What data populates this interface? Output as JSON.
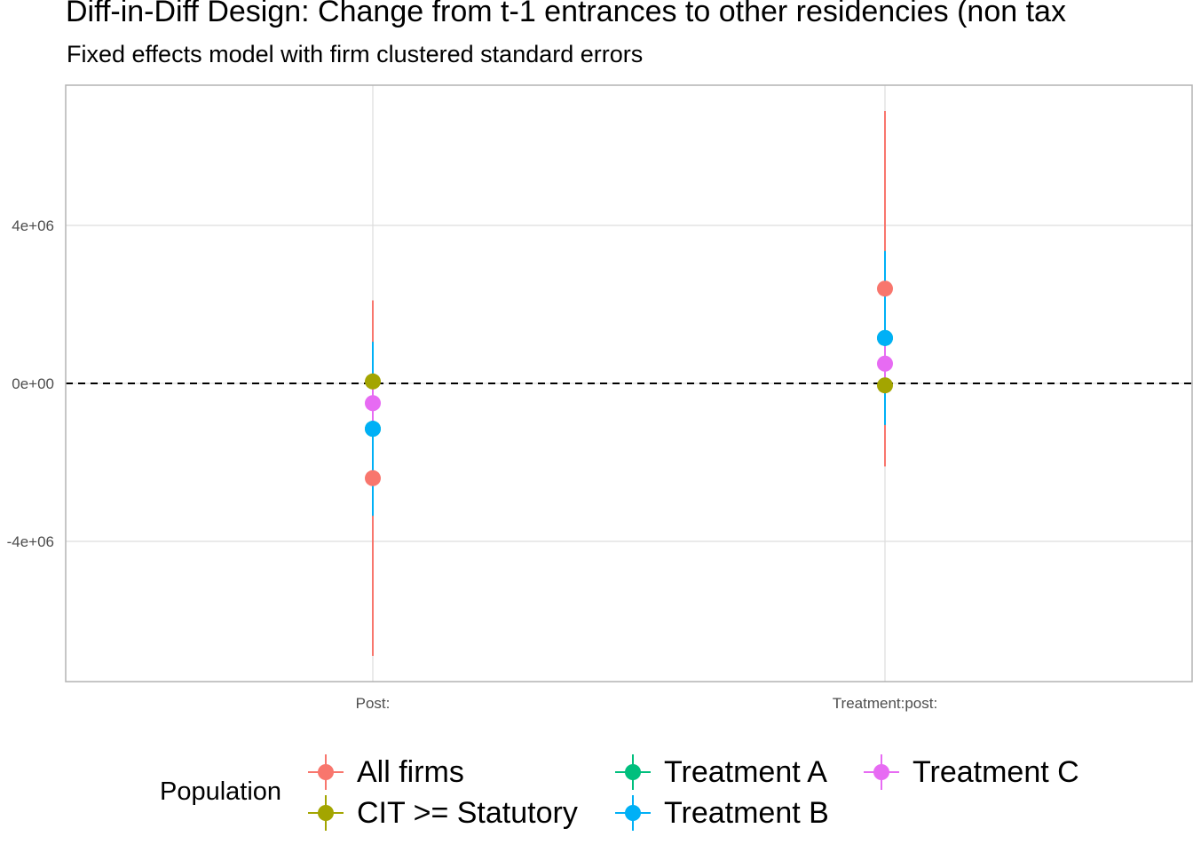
{
  "chart_data": {
    "type": "scatter",
    "title": "Diff-in-Diff Design: Change from t-1 entrances to other residencies (non tax",
    "subtitle": "Fixed effects model with firm clustered standard errors",
    "xlabel": "",
    "ylabel": "",
    "categories": [
      "Post:",
      "Treatment:post:"
    ],
    "y_ticks": [
      -4000000,
      0,
      4000000
    ],
    "y_tick_labels": [
      "-4e+06",
      "0e+00",
      "4e+06"
    ],
    "ylim": [
      -7500000,
      7600000
    ],
    "reference_line": 0,
    "legend_title": "Population",
    "legend_position": "bottom",
    "grid": true,
    "series": [
      {
        "name": "All firms",
        "color": "#F8766D",
        "values": [
          -2400000,
          2400000
        ],
        "lower": [
          -6900000,
          -2100000
        ],
        "upper": [
          2100000,
          6900000
        ]
      },
      {
        "name": "CIT >= Statutory",
        "color": "#A3A500",
        "values": [
          50000,
          -50000
        ],
        "lower": [
          -300000,
          -400000
        ],
        "upper": [
          400000,
          300000
        ]
      },
      {
        "name": "Treatment A",
        "color": "#00BF7D",
        "values": [
          -1150000,
          1150000
        ],
        "lower": [
          -3350000,
          -1050000
        ],
        "upper": [
          1050000,
          3350000
        ]
      },
      {
        "name": "Treatment B",
        "color": "#00B0F6",
        "values": [
          -1150000,
          1150000
        ],
        "lower": [
          -3350000,
          -1050000
        ],
        "upper": [
          1050000,
          3350000
        ]
      },
      {
        "name": "Treatment C",
        "color": "#E76BF3",
        "values": [
          -500000,
          500000
        ],
        "lower": [
          -1000000,
          -100000
        ],
        "upper": [
          100000,
          1000000
        ]
      }
    ]
  }
}
